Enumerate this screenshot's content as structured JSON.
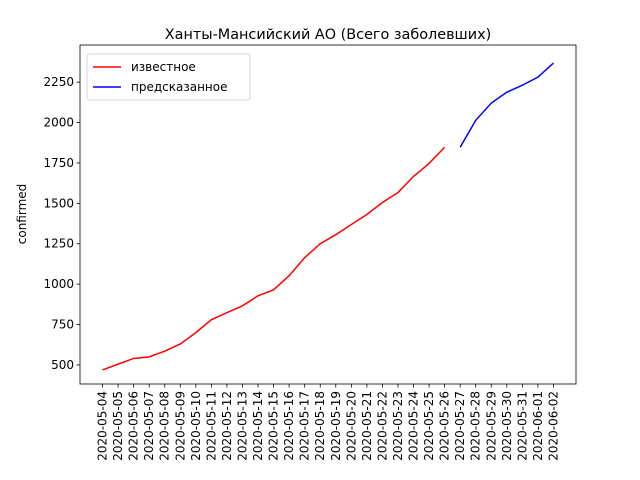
{
  "chart_data": {
    "type": "line",
    "title": "Ханты-Мансийский АО (Всего заболевших)",
    "y_label": "confirmed",
    "categories": [
      "2020-05-04",
      "2020-05-05",
      "2020-05-06",
      "2020-05-07",
      "2020-05-08",
      "2020-05-09",
      "2020-05-10",
      "2020-05-11",
      "2020-05-12",
      "2020-05-13",
      "2020-05-14",
      "2020-05-15",
      "2020-05-16",
      "2020-05-17",
      "2020-05-18",
      "2020-05-19",
      "2020-05-20",
      "2020-05-21",
      "2020-05-22",
      "2020-05-23",
      "2020-05-24",
      "2020-05-25",
      "2020-05-26",
      "2020-05-27",
      "2020-05-28",
      "2020-05-29",
      "2020-05-30",
      "2020-05-31",
      "2020-06-01",
      "2020-06-02"
    ],
    "series": [
      {
        "name": "известное",
        "color": "#ff0000",
        "values": [
          469,
          505,
          540,
          550,
          585,
          630,
          700,
          780,
          823,
          866,
          928,
          965,
          1052,
          1164,
          1250,
          1306,
          1369,
          1431,
          1505,
          1567,
          1667,
          1747,
          1847,
          null,
          null,
          null,
          null,
          null,
          null,
          null
        ]
      },
      {
        "name": "предсказанное",
        "color": "#0000ff",
        "values": [
          null,
          null,
          null,
          null,
          null,
          null,
          null,
          null,
          null,
          null,
          null,
          null,
          null,
          null,
          null,
          null,
          null,
          null,
          null,
          null,
          null,
          null,
          null,
          1847,
          2014,
          2120,
          2188,
          2231,
          2281,
          2368
        ]
      }
    ],
    "ylim": [
      382,
      2480
    ],
    "yticks": [
      500,
      750,
      1000,
      1250,
      1500,
      1750,
      2000,
      2250
    ],
    "legend": "upper left",
    "grid": false
  }
}
